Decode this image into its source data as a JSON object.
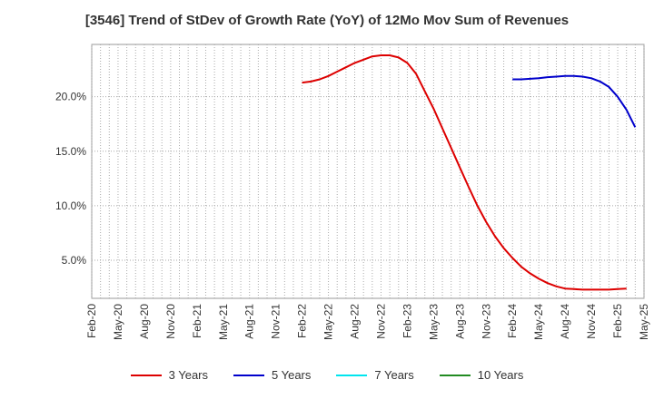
{
  "chart_data": {
    "type": "line",
    "title": "[3546]  Trend of StDev of Growth Rate (YoY) of 12Mo Mov Sum of Revenues",
    "xlabel": "",
    "ylabel": "",
    "ylim": [
      1.5,
      24.8
    ],
    "yticks": [
      5.0,
      10.0,
      15.0,
      20.0
    ],
    "ytick_labels": [
      "5.0%",
      "10.0%",
      "15.0%",
      "20.0%"
    ],
    "xticks": [
      "Feb-20",
      "May-20",
      "Aug-20",
      "Nov-20",
      "Feb-21",
      "May-21",
      "Aug-21",
      "Nov-21",
      "Feb-22",
      "May-22",
      "Aug-22",
      "Nov-22",
      "Feb-23",
      "May-23",
      "Aug-23",
      "Nov-23",
      "Feb-24",
      "May-24",
      "Aug-24",
      "Nov-24",
      "Feb-25",
      "May-25"
    ],
    "grid": true,
    "legend_position": "bottom",
    "series": [
      {
        "name": "3 Years",
        "color": "#dd0000",
        "start_month": 24,
        "values": [
          21.3,
          21.4,
          21.6,
          21.9,
          22.3,
          22.7,
          23.1,
          23.4,
          23.7,
          23.8,
          23.8,
          23.6,
          23.1,
          22.1,
          20.5,
          18.9,
          17.1,
          15.3,
          13.5,
          11.7,
          10.0,
          8.5,
          7.2,
          6.1,
          5.2,
          4.4,
          3.8,
          3.3,
          2.9,
          2.6,
          2.4,
          2.35,
          2.3,
          2.3,
          2.3,
          2.3,
          2.35,
          2.4
        ]
      },
      {
        "name": "5 Years",
        "color": "#0000cc",
        "start_month": 48,
        "values": [
          21.6,
          21.6,
          21.65,
          21.7,
          21.8,
          21.85,
          21.9,
          21.9,
          21.85,
          21.7,
          21.4,
          20.9,
          20.0,
          18.8,
          17.2
        ]
      },
      {
        "name": "7 Years",
        "color": "#00e5ee",
        "start_month": 0,
        "values": []
      },
      {
        "name": "10 Years",
        "color": "#228b22",
        "start_month": 0,
        "values": []
      }
    ]
  }
}
